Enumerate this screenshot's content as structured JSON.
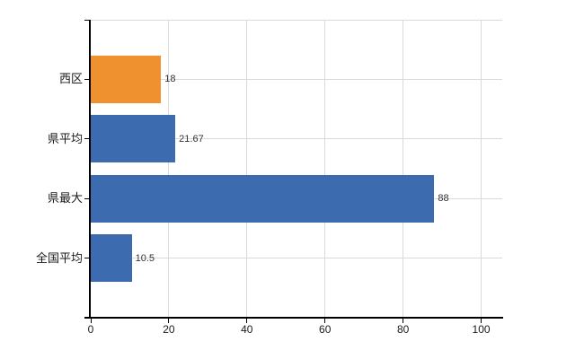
{
  "chart_data": {
    "type": "bar",
    "orientation": "horizontal",
    "title": "",
    "categories": [
      "西区",
      "県平均",
      "県最大",
      "全国平均"
    ],
    "values": [
      18,
      21.67,
      88,
      10.5
    ],
    "value_labels": [
      "18",
      "21.67",
      "88",
      "10.5"
    ],
    "bar_colors": [
      "#F0912F",
      "#3C6CAF",
      "#3C6CAF",
      "#3C6CAF"
    ],
    "highlight_category": "西区",
    "x_tick_values": [
      0,
      20,
      40,
      60,
      80,
      100
    ],
    "x_tick_labels": [
      "0",
      "20",
      "40",
      "60",
      "80",
      "100"
    ],
    "xlim": [
      0,
      105.4
    ],
    "grid": true,
    "legend_position": "none",
    "colors": {
      "bar_blue": "#3C6CAF",
      "bar_orange": "#F0912F",
      "gridline": "#D9D9D9",
      "axis": "#000000",
      "category_text": "#1A1A1A",
      "value_text": "#333333",
      "background": "#FFFFFF"
    }
  }
}
